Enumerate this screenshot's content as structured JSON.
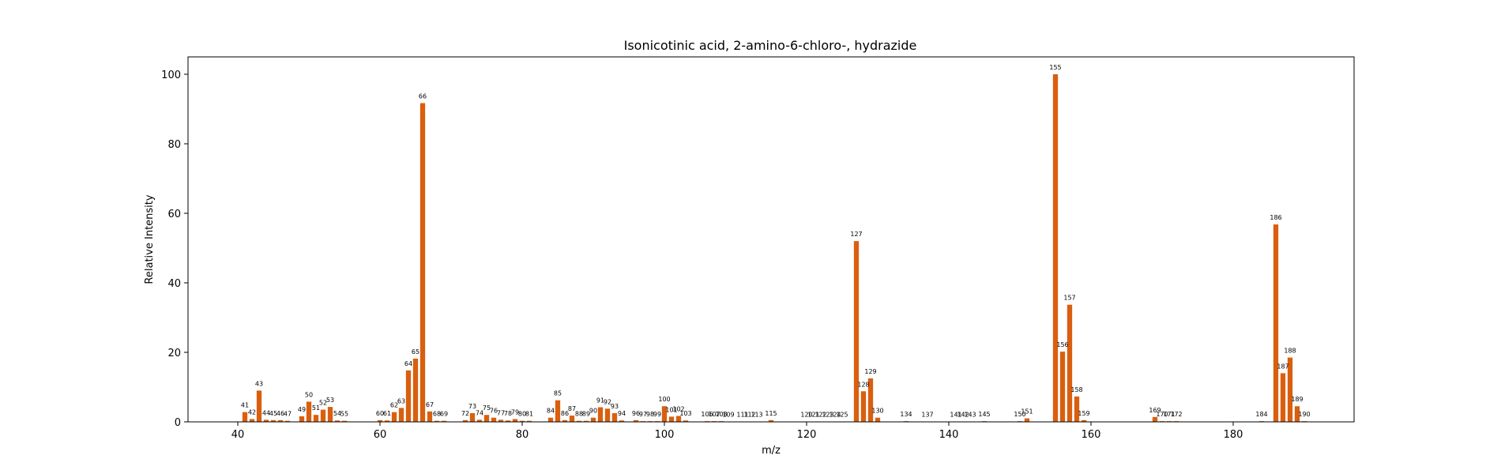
{
  "chart_data": {
    "type": "bar",
    "title": "Isonicotinic acid, 2-amino-6-chloro-, hydrazide",
    "xlabel": "m/z",
    "ylabel": "Relative Intensity",
    "xlim": [
      33,
      197
    ],
    "ylim": [
      0,
      105
    ],
    "xticks": [
      40,
      60,
      80,
      100,
      120,
      140,
      160,
      180
    ],
    "yticks": [
      0,
      20,
      40,
      60,
      80,
      100
    ],
    "grid": false,
    "bar_color": "#d95f0e",
    "x": [
      41,
      42,
      43,
      44,
      45,
      46,
      47,
      49,
      50,
      51,
      52,
      53,
      54,
      55,
      60,
      61,
      62,
      63,
      64,
      65,
      66,
      67,
      68,
      69,
      72,
      73,
      74,
      75,
      76,
      77,
      78,
      79,
      80,
      81,
      84,
      85,
      86,
      87,
      88,
      89,
      90,
      91,
      92,
      93,
      94,
      96,
      97,
      98,
      99,
      100,
      101,
      102,
      103,
      106,
      107,
      108,
      109,
      111,
      112,
      113,
      115,
      120,
      121,
      122,
      123,
      124,
      125,
      127,
      128,
      129,
      130,
      134,
      137,
      141,
      142,
      143,
      145,
      150,
      151,
      155,
      156,
      157,
      158,
      159,
      169,
      170,
      171,
      172,
      184,
      186,
      187,
      188,
      189,
      190
    ],
    "values": [
      2.8,
      0.8,
      9.0,
      0.6,
      0.5,
      0.5,
      0.3,
      1.6,
      5.8,
      2.0,
      3.5,
      4.3,
      0.4,
      0.3,
      0.5,
      0.4,
      2.8,
      4.0,
      14.8,
      18.2,
      91.7,
      3.0,
      0.3,
      0.3,
      0.5,
      2.5,
      0.6,
      2.0,
      1.2,
      0.6,
      0.4,
      0.8,
      0.3,
      0.3,
      1.2,
      6.2,
      0.5,
      1.8,
      0.3,
      0.3,
      1.2,
      4.2,
      3.8,
      2.5,
      0.4,
      0.5,
      0.2,
      0.2,
      0.2,
      4.5,
      1.5,
      1.7,
      0.4,
      0.2,
      0.2,
      0.2,
      0.1,
      0.1,
      0.1,
      0.1,
      0.5,
      0.1,
      0.1,
      0.1,
      0.1,
      0.1,
      0.1,
      52.0,
      8.8,
      12.5,
      1.2,
      0.2,
      0.1,
      0.1,
      0.1,
      0.1,
      0.2,
      0.2,
      1.0,
      100.0,
      20.2,
      33.7,
      7.3,
      0.5,
      1.4,
      0.2,
      0.2,
      0.2,
      0.2,
      56.8,
      14.0,
      18.5,
      4.5,
      0.2
    ],
    "labels": [
      "41",
      "42",
      "43",
      "44",
      "45",
      "46",
      "47",
      "49",
      "50",
      "51",
      "52",
      "53",
      "54",
      "55",
      "60",
      "61",
      "62",
      "63",
      "64",
      "65",
      "66",
      "67",
      "68",
      "69",
      "72",
      "73",
      "74",
      "75",
      "76",
      "77",
      "78",
      "79",
      "80",
      "81",
      "84",
      "85",
      "86",
      "87",
      "88",
      "89",
      "90",
      "91",
      "92",
      "93",
      "94",
      "96",
      "97",
      "98",
      "99",
      "100",
      "101",
      "102",
      "103",
      "106",
      "107",
      "108",
      "109",
      "111",
      "112",
      "113",
      "115",
      "120",
      "121",
      "122",
      "123",
      "124",
      "125",
      "127",
      "128",
      "129",
      "130",
      "134",
      "137",
      "141",
      "142",
      "143",
      "145",
      "150",
      "151",
      "155",
      "156",
      "157",
      "158",
      "159",
      "169",
      "170",
      "171",
      "172",
      "184",
      "186",
      "187",
      "188",
      "189",
      "190"
    ]
  }
}
